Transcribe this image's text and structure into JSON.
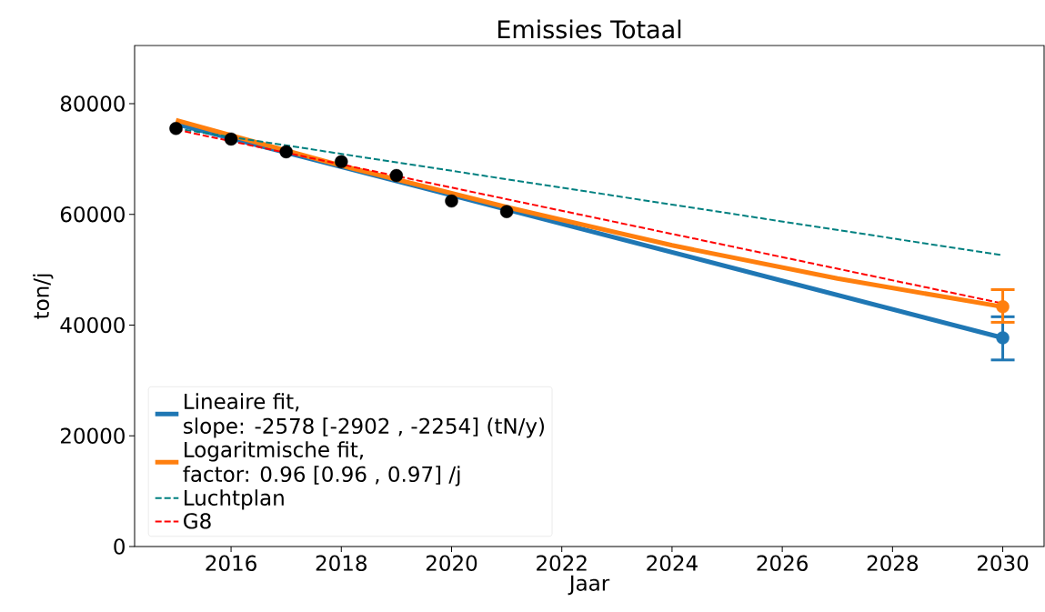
{
  "chart_data": {
    "type": "line",
    "title": "Emissies Totaal",
    "xlabel": "Jaar",
    "ylabel": "ton/j",
    "xlim": [
      2014.25,
      2030.75
    ],
    "ylim": [
      0,
      90500
    ],
    "xticks": [
      2016,
      2018,
      2020,
      2022,
      2024,
      2026,
      2028,
      2030
    ],
    "yticks": [
      0,
      20000,
      40000,
      60000,
      80000
    ],
    "legend": "bottom left",
    "series": [
      {
        "name": "Lineaire fit,\nslope: -2578  [-2902 , -2254] (tN/y)",
        "color": "#1f77b4",
        "line_style": "solid",
        "x": [
          2015,
          2030
        ],
        "values": [
          76300,
          37700
        ]
      },
      {
        "name": "Logaritmische fit,\nfactor: 0.96  [0.96 , 0.97] /j",
        "color": "#ff7f0e",
        "line_style": "solid",
        "x": [
          2015,
          2018,
          2021,
          2024,
          2027,
          2030
        ],
        "values": [
          77000,
          68800,
          61300,
          54400,
          48400,
          43300
        ]
      },
      {
        "name": "Luchtplan",
        "color": "#008080",
        "line_style": "dashed",
        "x": [
          2015,
          2030
        ],
        "values": [
          75500,
          52600
        ]
      },
      {
        "name": "G8",
        "color": "#ff0000",
        "line_style": "dashed",
        "x": [
          2015,
          2030
        ],
        "values": [
          75300,
          43900
        ]
      },
      {
        "type": "scatter",
        "color": "#000000",
        "x": [
          2015,
          2016,
          2017,
          2018,
          2019,
          2020,
          2021
        ],
        "values": [
          75500,
          73600,
          71300,
          69500,
          67000,
          62400,
          60500
        ]
      },
      {
        "type": "scatter",
        "color": "#1f77b4",
        "x": [
          2030
        ],
        "values": [
          37700
        ],
        "errors": [
          [
            33700,
            41500
          ]
        ]
      },
      {
        "type": "scatter",
        "color": "#ff7f0e",
        "x": [
          2030
        ],
        "values": [
          43300
        ],
        "errors": [
          [
            40500,
            46400
          ]
        ]
      }
    ]
  }
}
